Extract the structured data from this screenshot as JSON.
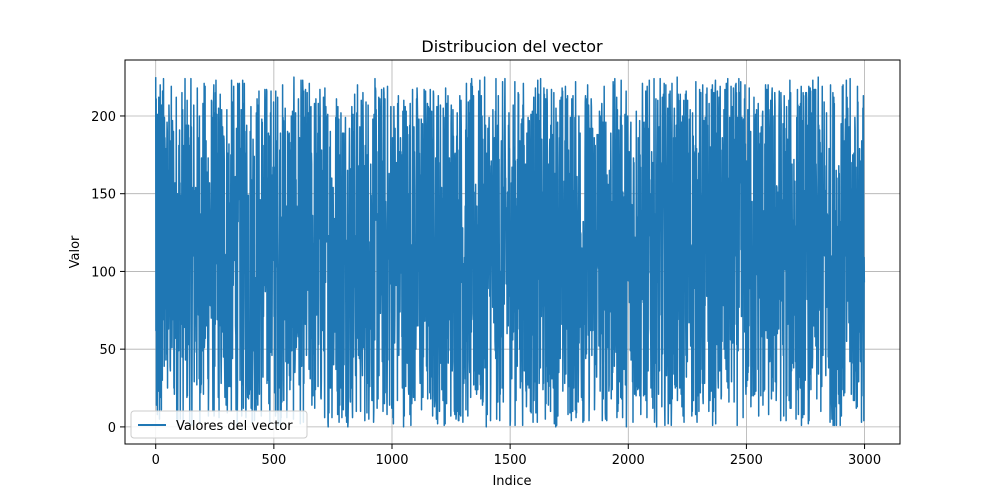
{
  "chart_data": {
    "type": "line",
    "title": "Distribucion del vector",
    "xlabel": "Indice",
    "ylabel": "Valor",
    "xlim": [
      -130,
      3150
    ],
    "ylim": [
      -11,
      236
    ],
    "x_ticks": [
      0,
      500,
      1000,
      1500,
      2000,
      2500,
      3000
    ],
    "x_tick_labels": [
      "0",
      "500",
      "1000",
      "1500",
      "2000",
      "2500",
      "3000"
    ],
    "y_ticks": [
      0,
      50,
      100,
      150,
      200
    ],
    "y_tick_labels": [
      "0",
      "50",
      "100",
      "150",
      "200"
    ],
    "grid": true,
    "legend_position": "lower-left",
    "series": [
      {
        "name": "Valores del vector",
        "color": "#1f77b4",
        "x_start": 0,
        "x_end": 2999,
        "count": 3000,
        "value_min": 0,
        "value_max": 225,
        "distribution": "uniform random noise",
        "sample_values": [
          225,
          62,
          211,
          14,
          190,
          35,
          160,
          8,
          201,
          96,
          180,
          23,
          145,
          212,
          40,
          130,
          5,
          198,
          77,
          220,
          19,
          168,
          54,
          185,
          11,
          207,
          88,
          150,
          30,
          216
        ]
      }
    ]
  }
}
